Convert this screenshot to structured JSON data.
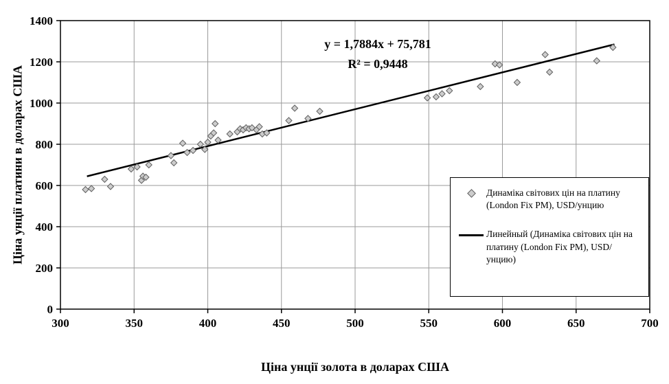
{
  "chart_data": {
    "type": "scatter",
    "title": "",
    "xlabel": "Ціна унції золота в доларах США",
    "ylabel": "Ціна унції платини в доларах США",
    "xlim": [
      300,
      700
    ],
    "ylim": [
      0,
      1400
    ],
    "xticks": [
      300,
      350,
      400,
      450,
      500,
      550,
      600,
      650,
      700
    ],
    "yticks": [
      0,
      200,
      400,
      600,
      800,
      1000,
      1200,
      1400
    ],
    "grid": true,
    "marker": "diamond",
    "marker_fill": "#cccccc",
    "marker_stroke": "#606060",
    "grid_color": "#9a9a9a",
    "axis_color": "#000000",
    "trend_color": "#000000",
    "points": [
      [
        317,
        580
      ],
      [
        321,
        585
      ],
      [
        330,
        630
      ],
      [
        334,
        595
      ],
      [
        348,
        680
      ],
      [
        352,
        690
      ],
      [
        355,
        625
      ],
      [
        356,
        645
      ],
      [
        358,
        640
      ],
      [
        360,
        700
      ],
      [
        375,
        745
      ],
      [
        377,
        710
      ],
      [
        383,
        805
      ],
      [
        386,
        760
      ],
      [
        390,
        770
      ],
      [
        395,
        800
      ],
      [
        398,
        775
      ],
      [
        400,
        810
      ],
      [
        402,
        840
      ],
      [
        404,
        855
      ],
      [
        405,
        900
      ],
      [
        407,
        820
      ],
      [
        415,
        850
      ],
      [
        420,
        860
      ],
      [
        422,
        875
      ],
      [
        424,
        870
      ],
      [
        426,
        880
      ],
      [
        428,
        875
      ],
      [
        430,
        880
      ],
      [
        433,
        870
      ],
      [
        435,
        885
      ],
      [
        437,
        850
      ],
      [
        440,
        855
      ],
      [
        455,
        915
      ],
      [
        459,
        975
      ],
      [
        468,
        925
      ],
      [
        476,
        960
      ],
      [
        549,
        1025
      ],
      [
        555,
        1030
      ],
      [
        559,
        1045
      ],
      [
        564,
        1060
      ],
      [
        585,
        1080
      ],
      [
        595,
        1190
      ],
      [
        598,
        1185
      ],
      [
        610,
        1100
      ],
      [
        629,
        1235
      ],
      [
        632,
        1150
      ],
      [
        664,
        1205
      ],
      [
        675,
        1270
      ]
    ],
    "trendline": {
      "slope": 1.7884,
      "intercept": 75.781,
      "x_start": 318,
      "x_end": 676,
      "equation_label": "y = 1,7884x + 75,781",
      "r2_label": "R² = 0,9448"
    },
    "legend": {
      "position": "right-center",
      "entries": [
        {
          "marker": "diamond",
          "label": "Динаміка світових цін на платину (London Fix PM), USD/унцию"
        },
        {
          "marker": "line",
          "label": "Линейный (Динаміка світових цін на платину (London Fix PM), USD/унцию)"
        }
      ]
    }
  }
}
